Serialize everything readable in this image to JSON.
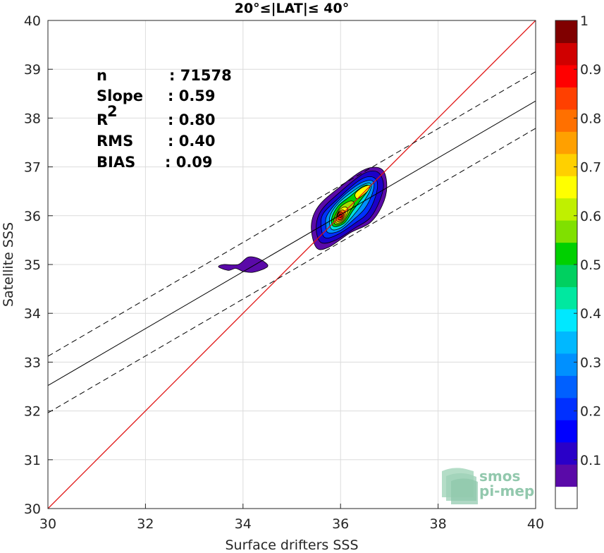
{
  "chart_data": {
    "type": "contour",
    "title": "20°≤|LAT|≤ 40°",
    "xlabel": "Surface drifters SSS",
    "ylabel": "Satellite SSS",
    "xlim": [
      30,
      40
    ],
    "ylim": [
      30,
      40
    ],
    "xticks": [
      "30",
      "32",
      "34",
      "36",
      "38",
      "40"
    ],
    "yticks": [
      "30",
      "31",
      "32",
      "33",
      "34",
      "35",
      "36",
      "37",
      "38",
      "39",
      "40"
    ],
    "grid": true,
    "stats": [
      {
        "label": "n",
        "value": ": 71578"
      },
      {
        "label": "Slope",
        "value": ": 0.59"
      },
      {
        "label": "R",
        "sup": "2",
        "value": ": 0.80"
      },
      {
        "label": "RMS",
        "value": ": 0.40"
      },
      {
        "label": "BIAS",
        "value": ": 0.09"
      }
    ],
    "identity_line": {
      "x": [
        30,
        40
      ],
      "y": [
        30,
        40
      ],
      "color": "#e01010"
    },
    "regression_line": {
      "x": [
        30,
        40
      ],
      "y": [
        32.52,
        38.35
      ],
      "color": "#000000",
      "style": "solid"
    },
    "confidence_lines": [
      {
        "x": [
          30,
          40
        ],
        "y": [
          33.12,
          38.95
        ],
        "style": "dashed"
      },
      {
        "x": [
          30,
          40
        ],
        "y": [
          31.96,
          37.79
        ],
        "style": "dashed"
      }
    ],
    "contour_levels": [
      {
        "level": 0.05,
        "color": "#5a0aa8",
        "rings": [
          [
            [
              35.5,
              35.35
            ],
            [
              35.75,
              35.35
            ],
            [
              36.2,
              35.65
            ],
            [
              36.6,
              35.85
            ],
            [
              36.85,
              36.2
            ],
            [
              36.95,
              36.6
            ],
            [
              36.85,
              36.95
            ],
            [
              36.5,
              36.95
            ],
            [
              36.0,
              36.6
            ],
            [
              35.55,
              36.2
            ],
            [
              35.4,
              35.8
            ]
          ],
          [
            [
              33.5,
              34.95
            ],
            [
              33.7,
              34.88
            ],
            [
              33.85,
              34.92
            ],
            [
              34.0,
              34.86
            ],
            [
              34.2,
              34.84
            ],
            [
              34.45,
              34.92
            ],
            [
              34.5,
              35.0
            ],
            [
              34.3,
              35.13
            ],
            [
              34.1,
              35.15
            ],
            [
              33.9,
              35.0
            ],
            [
              33.6,
              35.0
            ]
          ]
        ]
      },
      {
        "level": 0.1,
        "color": "#1c00c8",
        "rings": [
          [
            [
              35.6,
              35.45
            ],
            [
              35.9,
              35.5
            ],
            [
              36.3,
              35.75
            ],
            [
              36.6,
              35.95
            ],
            [
              36.8,
              36.3
            ],
            [
              36.88,
              36.65
            ],
            [
              36.75,
              36.9
            ],
            [
              36.45,
              36.85
            ],
            [
              35.95,
              36.45
            ],
            [
              35.6,
              36.1
            ],
            [
              35.5,
              35.75
            ]
          ]
        ]
      },
      {
        "level": 0.2,
        "color": "#0030ff",
        "rings": [
          [
            [
              35.68,
              35.55
            ],
            [
              35.95,
              35.62
            ],
            [
              36.3,
              35.85
            ],
            [
              36.55,
              36.05
            ],
            [
              36.72,
              36.4
            ],
            [
              36.75,
              36.7
            ],
            [
              36.6,
              36.8
            ],
            [
              36.35,
              36.7
            ],
            [
              35.95,
              36.35
            ],
            [
              35.65,
              36.05
            ],
            [
              35.6,
              35.8
            ]
          ]
        ]
      },
      {
        "level": 0.3,
        "color": "#0090ff",
        "rings": [
          [
            [
              35.75,
              35.65
            ],
            [
              36.0,
              35.7
            ],
            [
              36.3,
              35.95
            ],
            [
              36.5,
              36.15
            ],
            [
              36.65,
              36.45
            ],
            [
              36.68,
              36.68
            ],
            [
              36.55,
              36.72
            ],
            [
              36.3,
              36.6
            ],
            [
              35.95,
              36.3
            ],
            [
              35.72,
              36.0
            ],
            [
              35.7,
              35.8
            ]
          ]
        ]
      },
      {
        "level": 0.4,
        "color": "#00e0e0",
        "rings": [
          [
            [
              35.82,
              35.72
            ],
            [
              36.05,
              35.78
            ],
            [
              36.3,
              36.05
            ],
            [
              36.45,
              36.25
            ],
            [
              36.6,
              36.5
            ],
            [
              36.62,
              36.65
            ],
            [
              36.5,
              36.65
            ],
            [
              36.25,
              36.5
            ],
            [
              35.95,
              36.25
            ],
            [
              35.78,
              35.98
            ]
          ]
        ]
      },
      {
        "level": 0.5,
        "color": "#00d000",
        "rings": [
          [
            [
              35.86,
              35.78
            ],
            [
              36.08,
              35.85
            ],
            [
              36.25,
              36.1
            ],
            [
              36.4,
              36.3
            ],
            [
              36.55,
              36.5
            ],
            [
              36.58,
              36.62
            ],
            [
              36.45,
              36.6
            ],
            [
              36.2,
              36.4
            ],
            [
              35.95,
              36.2
            ],
            [
              35.82,
              35.95
            ]
          ]
        ]
      },
      {
        "level": 0.6,
        "color": "#a0e000",
        "rings": [
          [
            [
              35.9,
              35.82
            ],
            [
              36.06,
              35.88
            ],
            [
              36.2,
              36.1
            ],
            [
              36.28,
              36.25
            ],
            [
              36.2,
              36.3
            ],
            [
              36.0,
              36.18
            ],
            [
              35.87,
              35.95
            ]
          ]
        ]
      },
      {
        "level": 0.7,
        "color": "#ffff00",
        "rings": [
          [
            [
              35.92,
              35.85
            ],
            [
              36.05,
              35.9
            ],
            [
              36.15,
              36.1
            ],
            [
              36.1,
              36.18
            ],
            [
              35.98,
              36.12
            ],
            [
              35.9,
              35.95
            ]
          ],
          [
            [
              36.35,
              36.35
            ],
            [
              36.55,
              36.5
            ],
            [
              36.6,
              36.62
            ],
            [
              36.45,
              36.58
            ],
            [
              36.3,
              36.45
            ]
          ]
        ]
      },
      {
        "level": 0.8,
        "color": "#ff8000",
        "rings": [
          [
            [
              35.94,
              35.88
            ],
            [
              36.04,
              35.92
            ],
            [
              36.1,
              36.06
            ],
            [
              36.04,
              36.12
            ],
            [
              35.96,
              36.07
            ],
            [
              35.92,
              35.95
            ]
          ]
        ]
      },
      {
        "level": 0.9,
        "color": "#ff3000",
        "rings": [
          [
            [
              35.96,
              35.92
            ],
            [
              36.03,
              35.94
            ],
            [
              36.06,
              36.03
            ],
            [
              36.0,
              36.08
            ],
            [
              35.95,
              36.03
            ]
          ]
        ]
      },
      {
        "level": 1.0,
        "color": "#d00000",
        "rings": [
          [
            [
              35.98,
              35.96
            ],
            [
              36.02,
              35.97
            ],
            [
              36.03,
              36.02
            ],
            [
              35.99,
              36.04
            ],
            [
              35.97,
              36.0
            ]
          ]
        ]
      }
    ],
    "colorbar": {
      "range": [
        0,
        1
      ],
      "ticks": [
        "0.1",
        "0.2",
        "0.3",
        "0.4",
        "0.5",
        "0.6",
        "0.7",
        "0.8",
        "0.9",
        "1"
      ],
      "tick_values": [
        0.1,
        0.2,
        0.3,
        0.4,
        0.5,
        0.6,
        0.7,
        0.8,
        0.9,
        1.0
      ],
      "colors": [
        "#ffffff",
        "#5a0aa8",
        "#2a00c8",
        "#0000ff",
        "#0030ff",
        "#0060ff",
        "#0090ff",
        "#00b8ff",
        "#00e8ff",
        "#00e8a0",
        "#00d060",
        "#00d000",
        "#80e000",
        "#c0f000",
        "#ffff00",
        "#ffd000",
        "#ffa000",
        "#ff7000",
        "#ff4000",
        "#ff0000",
        "#d00000",
        "#800000"
      ]
    },
    "watermark": [
      "smos",
      "pi-mep"
    ]
  }
}
